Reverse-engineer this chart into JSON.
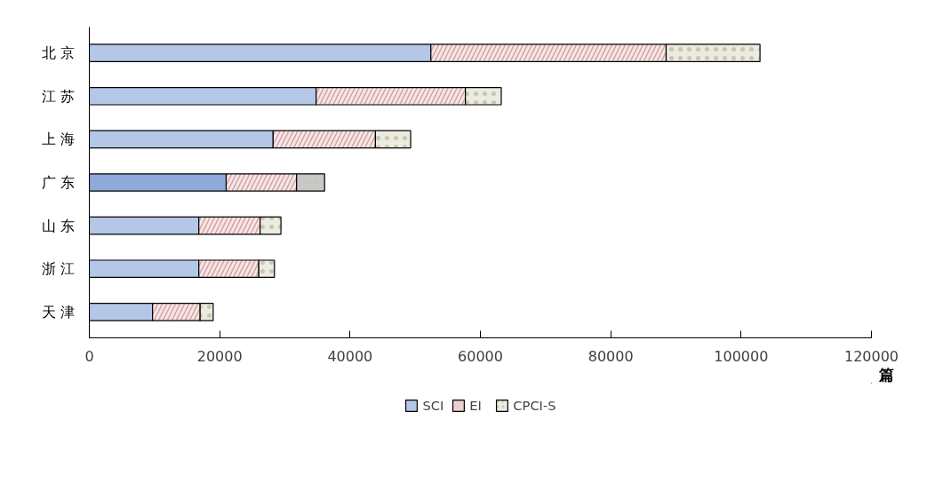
{
  "chart_data": {
    "type": "bar",
    "orientation": "horizontal",
    "stacked": true,
    "xlabel": "篇",
    "categories": [
      "北  京",
      "江  苏",
      "上  海",
      "广  东",
      "山  东",
      "浙  江",
      "天  津"
    ],
    "series": [
      {
        "name": "SCI",
        "color": "#b4c7e7",
        "colors": [
          "#b4c7e7",
          "#b4c7e7",
          "#b4c7e7",
          "#8eaadb",
          "#b4c7e7",
          "#b4c7e7",
          "#b4c7e7"
        ],
        "values": [
          52400,
          34800,
          28200,
          21000,
          16800,
          16800,
          9700
        ]
      },
      {
        "name": "EI",
        "color": "#f6e6e6",
        "values": [
          36100,
          22900,
          15700,
          10800,
          9400,
          9200,
          7300
        ]
      },
      {
        "name": "CPCI-S",
        "color": "#ecebdf",
        "colors": [
          "#ecebdf",
          "#ecebdf",
          "#ecebdf",
          "#c8c8c8",
          "#ecebdf",
          "#ecebdf",
          "#ecebdf"
        ],
        "values": [
          14400,
          5500,
          5400,
          4300,
          3200,
          2400,
          2000
        ]
      }
    ],
    "xlim": [
      0,
      120000
    ],
    "xticks": [
      0,
      20000,
      40000,
      60000,
      80000,
      100000,
      120000
    ],
    "grid": false,
    "legend": "bottom"
  }
}
